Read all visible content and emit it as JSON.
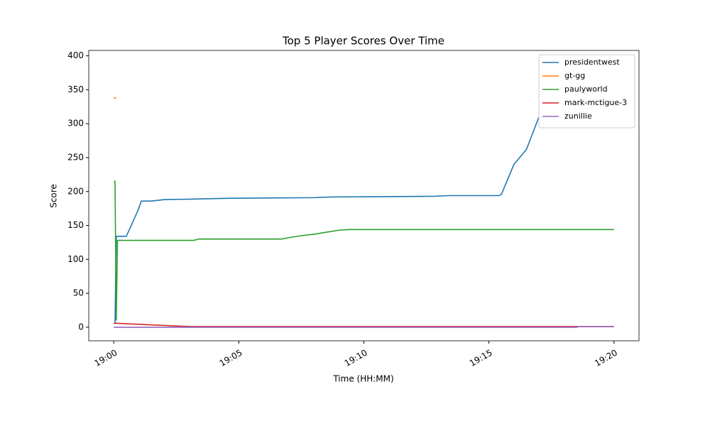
{
  "chart_data": {
    "type": "line",
    "title": "Top 5 Player Scores Over Time",
    "x_label": "Time (HH:MM)",
    "y_label": "Score",
    "xlim": [
      1139,
      1161
    ],
    "ylim": [
      -20,
      408
    ],
    "xticks": [
      {
        "value": 1140,
        "label": "19:00"
      },
      {
        "value": 1145,
        "label": "19:05"
      },
      {
        "value": 1150,
        "label": "19:10"
      },
      {
        "value": 1155,
        "label": "19:15"
      },
      {
        "value": 1160,
        "label": "19:20"
      }
    ],
    "yticks": [
      0,
      50,
      100,
      150,
      200,
      250,
      300,
      350,
      400
    ],
    "grid": false,
    "legend": "upper right",
    "series": [
      {
        "name": "presidentwest",
        "color": "#1f77b4",
        "x": [
          1140.05,
          1140.1,
          1140.5,
          1140.7,
          1141.0,
          1141.1,
          1141.5,
          1142,
          1143.3,
          1144.5,
          1148,
          1148.7,
          1152.8,
          1153.4,
          1155.4,
          1155.5,
          1156,
          1156.5,
          1157,
          1157.5,
          1158
        ],
        "values": [
          5,
          134,
          134,
          150,
          175,
          186,
          186,
          188,
          189,
          190,
          191,
          192,
          193,
          194,
          194,
          196,
          240,
          262,
          310,
          360,
          390
        ]
      },
      {
        "name": "gt-gg",
        "color": "#ff7f0e",
        "x": [
          1140.0,
          1140.1
        ],
        "values": [
          338,
          338
        ]
      },
      {
        "name": "paulyworld",
        "color": "#2ca02c",
        "x": [
          1140,
          1140.05,
          1140.1,
          1140.15,
          1143.2,
          1143.4,
          1146.7,
          1147,
          1147.5,
          1148,
          1148.5,
          1149,
          1149.4,
          1160
        ],
        "values": [
          215,
          215,
          10,
          128,
          128,
          130,
          130,
          132,
          135,
          137,
          140,
          143,
          144,
          144
        ]
      },
      {
        "name": "mark-mctigue-3",
        "color": "#d62728",
        "x": [
          1140,
          1143,
          1160
        ],
        "values": [
          6,
          1,
          1
        ]
      },
      {
        "name": "zunillie",
        "color": "#9467bd",
        "x": [
          1140,
          1158.5,
          1158.6,
          1160
        ],
        "values": [
          0,
          0,
          1,
          1
        ]
      }
    ]
  }
}
